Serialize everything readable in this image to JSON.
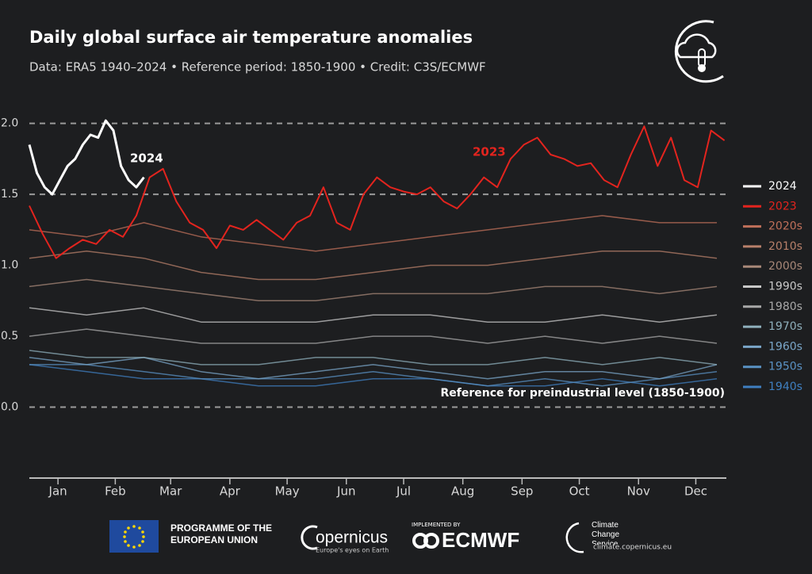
{
  "chart_data": {
    "type": "line",
    "title": "Daily global surface air temperature anomalies",
    "subtitle": "Data: ERA5 1940–2024 • Reference period: 1850-1900 • Credit: C3S/ECMWF",
    "xlim": [
      1,
      366
    ],
    "xticks": [
      {
        "value": 16,
        "label": "Jan"
      },
      {
        "value": 46,
        "label": "Feb"
      },
      {
        "value": 75,
        "label": "Mar"
      },
      {
        "value": 106,
        "label": "Apr"
      },
      {
        "value": 136,
        "label": "May"
      },
      {
        "value": 167,
        "label": "Jun"
      },
      {
        "value": 197,
        "label": "Jul"
      },
      {
        "value": 228,
        "label": "Aug"
      },
      {
        "value": 259,
        "label": "Sep"
      },
      {
        "value": 289,
        "label": "Oct"
      },
      {
        "value": 320,
        "label": "Nov"
      },
      {
        "value": 350,
        "label": "Dec"
      }
    ],
    "ylim": [
      -0.5,
      2.3
    ],
    "yticks": [
      {
        "value": 0,
        "label": "0.0"
      },
      {
        "value": 0.5,
        "label": "0.5"
      },
      {
        "value": 1,
        "label": "1.0"
      },
      {
        "value": 1.5,
        "label": "1.5"
      },
      {
        "value": 2,
        "label": "2.0"
      }
    ],
    "reference_lines": [
      0,
      1.5,
      2
    ],
    "annotations": [
      "2024",
      "2023",
      "Reference for preindustrial level (1850-1900)"
    ],
    "series": [
      {
        "name": "2024",
        "color": "#ffffff",
        "x": [
          1,
          5,
          9,
          13,
          17,
          21,
          25,
          29,
          33,
          37,
          41,
          45,
          49,
          53,
          57,
          61
        ],
        "values": [
          1.85,
          1.65,
          1.55,
          1.5,
          1.6,
          1.7,
          1.75,
          1.85,
          1.92,
          1.9,
          2.02,
          1.95,
          1.7,
          1.6,
          1.55,
          1.62
        ]
      },
      {
        "name": "2023",
        "color": "#e3241e",
        "x": [
          1,
          8,
          15,
          22,
          29,
          36,
          43,
          50,
          57,
          64,
          71,
          78,
          85,
          92,
          99,
          106,
          113,
          120,
          127,
          134,
          141,
          148,
          155,
          162,
          169,
          176,
          183,
          190,
          197,
          204,
          211,
          218,
          225,
          232,
          239,
          246,
          253,
          260,
          267,
          274,
          281,
          288,
          295,
          302,
          309,
          316,
          323,
          330,
          337,
          344,
          351,
          358,
          365
        ],
        "values": [
          1.42,
          1.22,
          1.05,
          1.12,
          1.18,
          1.15,
          1.25,
          1.2,
          1.35,
          1.62,
          1.68,
          1.45,
          1.3,
          1.25,
          1.12,
          1.28,
          1.25,
          1.32,
          1.25,
          1.18,
          1.3,
          1.35,
          1.55,
          1.3,
          1.25,
          1.5,
          1.62,
          1.55,
          1.52,
          1.5,
          1.55,
          1.45,
          1.4,
          1.5,
          1.62,
          1.55,
          1.75,
          1.85,
          1.9,
          1.78,
          1.75,
          1.7,
          1.72,
          1.6,
          1.55,
          1.78,
          1.98,
          1.7,
          1.9,
          1.6,
          1.55,
          1.95,
          1.88
        ]
      },
      {
        "name": "2020s",
        "color": "#c0705a",
        "x": [
          1,
          31,
          61,
          91,
          121,
          151,
          181,
          211,
          241,
          271,
          301,
          331,
          361
        ],
        "values": [
          1.25,
          1.2,
          1.3,
          1.2,
          1.15,
          1.1,
          1.15,
          1.2,
          1.25,
          1.3,
          1.35,
          1.3,
          1.3
        ]
      },
      {
        "name": "2010s",
        "color": "#b8806a",
        "x": [
          1,
          31,
          61,
          91,
          121,
          151,
          181,
          211,
          241,
          271,
          301,
          331,
          361
        ],
        "values": [
          1.05,
          1.1,
          1.05,
          0.95,
          0.9,
          0.9,
          0.95,
          1.0,
          1.0,
          1.05,
          1.1,
          1.1,
          1.05
        ]
      },
      {
        "name": "2000s",
        "color": "#a88878",
        "x": [
          1,
          31,
          61,
          91,
          121,
          151,
          181,
          211,
          241,
          271,
          301,
          331,
          361
        ],
        "values": [
          0.85,
          0.9,
          0.85,
          0.8,
          0.75,
          0.75,
          0.8,
          0.8,
          0.8,
          0.85,
          0.85,
          0.8,
          0.85
        ]
      },
      {
        "name": "1990s",
        "color": "#c8c8c8",
        "x": [
          1,
          31,
          61,
          91,
          121,
          151,
          181,
          211,
          241,
          271,
          301,
          331,
          361
        ],
        "values": [
          0.7,
          0.65,
          0.7,
          0.6,
          0.6,
          0.6,
          0.65,
          0.65,
          0.6,
          0.6,
          0.65,
          0.6,
          0.65
        ]
      },
      {
        "name": "1980s",
        "color": "#a8a8a8",
        "x": [
          1,
          31,
          61,
          91,
          121,
          151,
          181,
          211,
          241,
          271,
          301,
          331,
          361
        ],
        "values": [
          0.5,
          0.55,
          0.5,
          0.45,
          0.45,
          0.45,
          0.5,
          0.5,
          0.45,
          0.5,
          0.45,
          0.5,
          0.45
        ]
      },
      {
        "name": "1970s",
        "color": "#8fb0bc",
        "x": [
          1,
          31,
          61,
          91,
          121,
          151,
          181,
          211,
          241,
          271,
          301,
          331,
          361
        ],
        "values": [
          0.4,
          0.35,
          0.35,
          0.3,
          0.3,
          0.35,
          0.35,
          0.3,
          0.3,
          0.35,
          0.3,
          0.35,
          0.3
        ]
      },
      {
        "name": "1960s",
        "color": "#7aa6c8",
        "x": [
          1,
          31,
          61,
          91,
          121,
          151,
          181,
          211,
          241,
          271,
          301,
          331,
          361
        ],
        "values": [
          0.35,
          0.3,
          0.35,
          0.25,
          0.2,
          0.25,
          0.3,
          0.25,
          0.2,
          0.25,
          0.25,
          0.2,
          0.3
        ]
      },
      {
        "name": "1950s",
        "color": "#5a92c4",
        "x": [
          1,
          31,
          61,
          91,
          121,
          151,
          181,
          211,
          241,
          271,
          301,
          331,
          361
        ],
        "values": [
          0.3,
          0.3,
          0.25,
          0.2,
          0.2,
          0.2,
          0.25,
          0.2,
          0.15,
          0.2,
          0.15,
          0.2,
          0.25
        ]
      },
      {
        "name": "1940s",
        "color": "#3f7fc0",
        "x": [
          1,
          31,
          61,
          91,
          121,
          151,
          181,
          211,
          241,
          271,
          301,
          331,
          361
        ],
        "values": [
          0.3,
          0.25,
          0.2,
          0.2,
          0.15,
          0.15,
          0.2,
          0.2,
          0.15,
          0.15,
          0.2,
          0.15,
          0.2
        ]
      }
    ]
  },
  "footer": {
    "eu": "PROGRAMME OF THE EUROPEAN UNION",
    "copernicus": "opernicus",
    "copernicus_tagline": "Europe's eyes on Earth",
    "implemented_by": "IMPLEMENTED BY",
    "ecmwf": "ECMWF",
    "c3s": "Climate Change Service",
    "c3s_url": "climate.copernicus.eu"
  }
}
